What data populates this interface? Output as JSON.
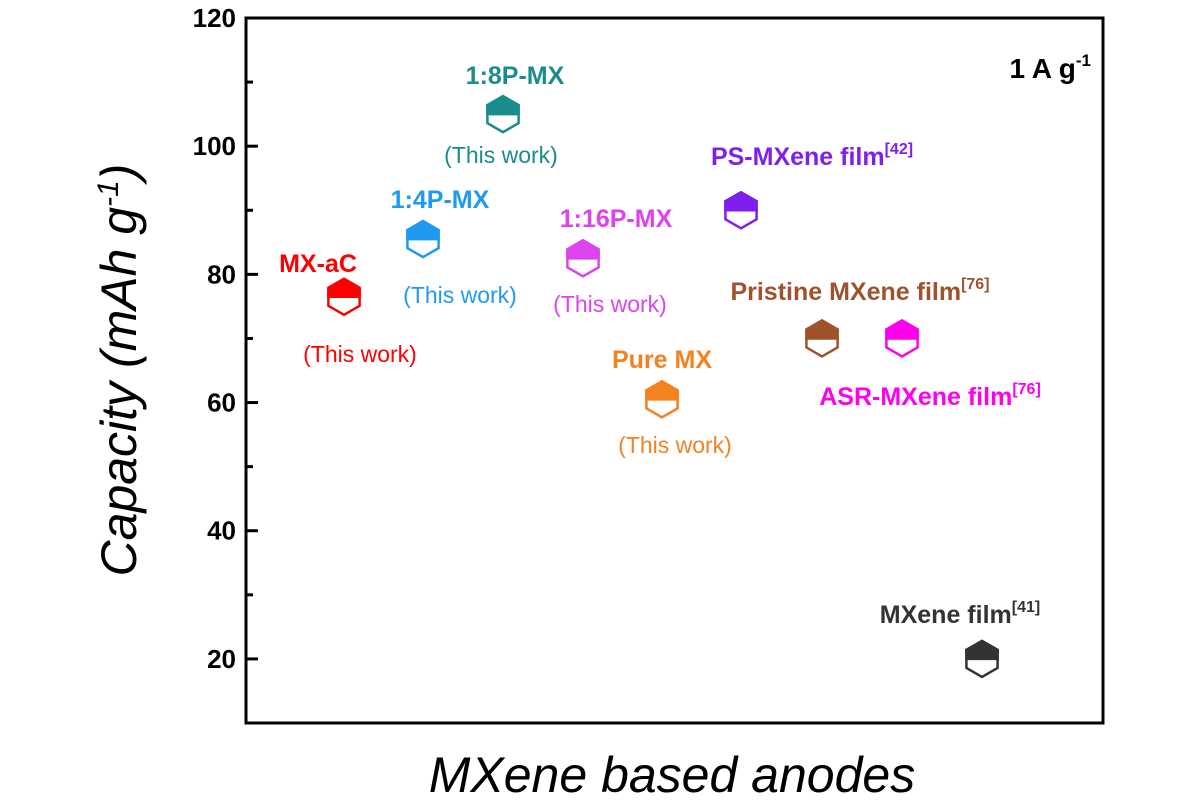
{
  "chart_data": {
    "type": "scatter",
    "title": "",
    "xlabel": "MXene based anodes",
    "ylabel": {
      "main": "Capacity (mAh g",
      "sup": "-1",
      "close": ")"
    },
    "ylim": [
      10,
      120
    ],
    "yticks": [
      20,
      40,
      60,
      80,
      100,
      120
    ],
    "grid": false,
    "legend": "none",
    "annotation": {
      "text": "1 A g",
      "sup": "-1"
    },
    "points": [
      {
        "name": "MX-aC",
        "sup": "",
        "note": "(This work)",
        "x": 1,
        "y": 76.5,
        "color": "#ff0000"
      },
      {
        "name": "1:4P-MX",
        "sup": "",
        "note": "(This work)",
        "x": 2,
        "y": 85.5,
        "color": "#1e9bf0"
      },
      {
        "name": "1:8P-MX",
        "sup": "",
        "note": "(This work)",
        "x": 3,
        "y": 105,
        "color": "#1a8c8c"
      },
      {
        "name": "1:16P-MX",
        "sup": "",
        "note": "(This work)",
        "x": 4,
        "y": 82.5,
        "color": "#dd44ee"
      },
      {
        "name": "Pure MX",
        "sup": "",
        "note": "(This work)",
        "x": 5,
        "y": 60.5,
        "color": "#f58220"
      },
      {
        "name": "PS-MXene film",
        "sup": "[42]",
        "note": "",
        "x": 6,
        "y": 90,
        "color": "#7f1fef"
      },
      {
        "name": "Pristine MXene film",
        "sup": "[76]",
        "note": "",
        "x": 7,
        "y": 70,
        "color": "#a0522d"
      },
      {
        "name": "ASR-MXene film",
        "sup": "[76]",
        "note": "",
        "x": 8,
        "y": 70,
        "color": "#ff00ee"
      },
      {
        "name": "MXene film",
        "sup": "[41]",
        "note": "",
        "x": 9,
        "y": 20,
        "color": "#333333"
      }
    ]
  }
}
